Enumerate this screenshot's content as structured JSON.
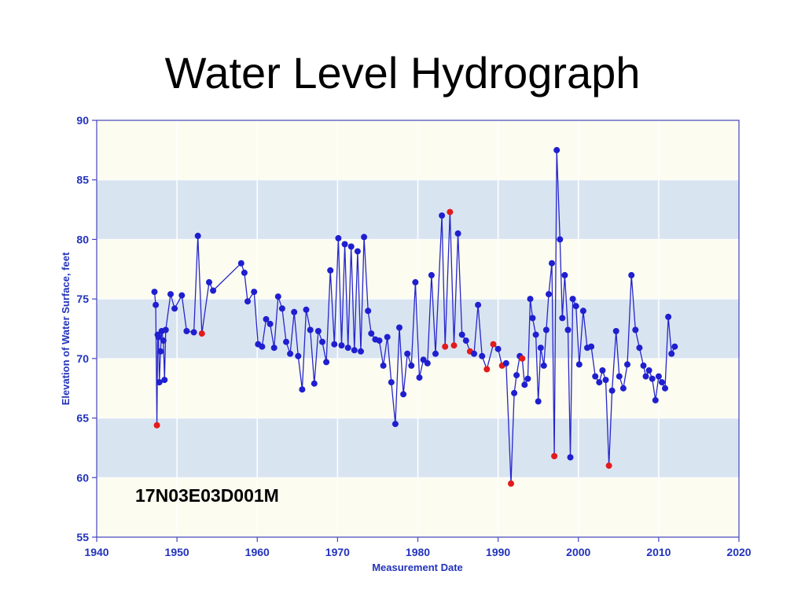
{
  "slide": {
    "title": "Water Level Hydrograph"
  },
  "colors": {
    "axis": "#4444bb",
    "tick_text": "#2233bb",
    "line": "#2626cc",
    "point": "#1f1fd0",
    "flagged_point": "#e31b1b",
    "band_ivory": "#fcfcf0",
    "band_blue": "#d9e4f1",
    "gridline": "#ffffff",
    "title_text": "#000000"
  },
  "chart_data": {
    "type": "line",
    "marker": "circle",
    "title": "Water Level Hydrograph",
    "xlabel": "Measurement Date",
    "ylabel": "Elevation of Water Surface, feet",
    "well_id": "17N03E03D001M",
    "xlim": [
      1940,
      2020
    ],
    "ylim": [
      55,
      90
    ],
    "xticks": [
      1940,
      1950,
      1960,
      1970,
      1980,
      1990,
      2000,
      2010,
      2020
    ],
    "yticks": [
      55,
      60,
      65,
      70,
      75,
      80,
      85,
      90
    ],
    "grid": "white vertical gridlines at decade ticks, alternating horizontal color bands every 5 ft",
    "legend": "none",
    "point_format": "[year, elevation_ft, flagged(0=blue,1=red)]",
    "points": [
      [
        1947.2,
        75.6,
        0
      ],
      [
        1947.35,
        74.5,
        0
      ],
      [
        1947.5,
        64.4,
        1
      ],
      [
        1947.6,
        72.0,
        0
      ],
      [
        1947.7,
        71.8,
        0
      ],
      [
        1947.8,
        68.0,
        0
      ],
      [
        1947.95,
        70.6,
        0
      ],
      [
        1948.1,
        72.3,
        0
      ],
      [
        1948.3,
        71.5,
        0
      ],
      [
        1948.45,
        68.2,
        0
      ],
      [
        1948.6,
        72.4,
        0
      ],
      [
        1949.2,
        75.4,
        0
      ],
      [
        1949.7,
        74.2,
        0
      ],
      [
        1950.6,
        75.3,
        0
      ],
      [
        1951.2,
        72.3,
        0
      ],
      [
        1952.1,
        72.2,
        0
      ],
      [
        1952.6,
        80.3,
        0
      ],
      [
        1953.1,
        72.1,
        1
      ],
      [
        1954.0,
        76.4,
        0
      ],
      [
        1954.5,
        75.7,
        0
      ],
      [
        1958.0,
        78.0,
        0
      ],
      [
        1958.4,
        77.2,
        0
      ],
      [
        1958.8,
        74.8,
        0
      ],
      [
        1959.6,
        75.6,
        0
      ],
      [
        1960.1,
        71.2,
        0
      ],
      [
        1960.6,
        71.0,
        0
      ],
      [
        1961.1,
        73.3,
        0
      ],
      [
        1961.6,
        72.9,
        0
      ],
      [
        1962.1,
        70.9,
        0
      ],
      [
        1962.6,
        75.2,
        0
      ],
      [
        1963.1,
        74.2,
        0
      ],
      [
        1963.6,
        71.4,
        0
      ],
      [
        1964.1,
        70.4,
        0
      ],
      [
        1964.6,
        73.9,
        0
      ],
      [
        1965.1,
        70.2,
        0
      ],
      [
        1965.6,
        67.4,
        0
      ],
      [
        1966.1,
        74.1,
        0
      ],
      [
        1966.6,
        72.4,
        0
      ],
      [
        1967.1,
        67.9,
        0
      ],
      [
        1967.6,
        72.3,
        0
      ],
      [
        1968.1,
        71.4,
        0
      ],
      [
        1968.6,
        69.7,
        0
      ],
      [
        1969.1,
        77.4,
        0
      ],
      [
        1969.6,
        71.2,
        0
      ],
      [
        1970.1,
        80.1,
        0
      ],
      [
        1970.5,
        71.1,
        0
      ],
      [
        1970.9,
        79.6,
        0
      ],
      [
        1971.3,
        70.9,
        0
      ],
      [
        1971.7,
        79.4,
        0
      ],
      [
        1972.1,
        70.7,
        0
      ],
      [
        1972.5,
        79.0,
        0
      ],
      [
        1972.9,
        70.6,
        0
      ],
      [
        1973.3,
        80.2,
        0
      ],
      [
        1973.8,
        74.0,
        0
      ],
      [
        1974.2,
        72.1,
        0
      ],
      [
        1974.7,
        71.6,
        0
      ],
      [
        1975.2,
        71.5,
        0
      ],
      [
        1975.7,
        69.4,
        0
      ],
      [
        1976.2,
        71.8,
        0
      ],
      [
        1976.7,
        68.0,
        0
      ],
      [
        1977.2,
        64.5,
        0
      ],
      [
        1977.7,
        72.6,
        0
      ],
      [
        1978.2,
        67.0,
        0
      ],
      [
        1978.7,
        70.4,
        0
      ],
      [
        1979.2,
        69.4,
        0
      ],
      [
        1979.7,
        76.4,
        0
      ],
      [
        1980.2,
        68.4,
        0
      ],
      [
        1980.7,
        69.9,
        0
      ],
      [
        1981.2,
        69.6,
        0
      ],
      [
        1981.7,
        77.0,
        0
      ],
      [
        1982.2,
        70.4,
        0
      ],
      [
        1983.0,
        82.0,
        0
      ],
      [
        1983.4,
        71.0,
        1
      ],
      [
        1984.0,
        82.3,
        1
      ],
      [
        1984.5,
        71.1,
        1
      ],
      [
        1985.0,
        80.5,
        0
      ],
      [
        1985.5,
        72.0,
        0
      ],
      [
        1986.0,
        71.5,
        0
      ],
      [
        1986.5,
        70.6,
        1
      ],
      [
        1987.0,
        70.4,
        0
      ],
      [
        1987.5,
        74.5,
        0
      ],
      [
        1988.0,
        70.2,
        0
      ],
      [
        1988.6,
        69.1,
        1
      ],
      [
        1989.4,
        71.2,
        1
      ],
      [
        1990.0,
        70.8,
        0
      ],
      [
        1990.5,
        69.4,
        1
      ],
      [
        1991.0,
        69.6,
        0
      ],
      [
        1991.6,
        59.5,
        1
      ],
      [
        1992.0,
        67.1,
        0
      ],
      [
        1992.3,
        68.6,
        0
      ],
      [
        1992.7,
        70.2,
        0
      ],
      [
        1993.0,
        70.0,
        1
      ],
      [
        1993.3,
        67.8,
        0
      ],
      [
        1993.7,
        68.3,
        0
      ],
      [
        1994.0,
        75.0,
        0
      ],
      [
        1994.3,
        73.4,
        0
      ],
      [
        1994.7,
        72.0,
        0
      ],
      [
        1995.0,
        66.4,
        0
      ],
      [
        1995.3,
        70.9,
        0
      ],
      [
        1995.7,
        69.4,
        0
      ],
      [
        1996.0,
        72.4,
        0
      ],
      [
        1996.3,
        75.4,
        0
      ],
      [
        1996.7,
        78.0,
        0
      ],
      [
        1997.0,
        61.8,
        1
      ],
      [
        1997.3,
        87.5,
        0
      ],
      [
        1997.7,
        80.0,
        0
      ],
      [
        1998.0,
        73.4,
        0
      ],
      [
        1998.3,
        77.0,
        0
      ],
      [
        1998.7,
        72.4,
        0
      ],
      [
        1999.0,
        61.7,
        0
      ],
      [
        1999.3,
        75.0,
        0
      ],
      [
        1999.7,
        74.4,
        0
      ],
      [
        2000.1,
        69.5,
        0
      ],
      [
        2000.6,
        74.0,
        0
      ],
      [
        2001.1,
        70.9,
        0
      ],
      [
        2001.6,
        71.0,
        0
      ],
      [
        2002.1,
        68.5,
        0
      ],
      [
        2002.6,
        68.0,
        0
      ],
      [
        2003.0,
        69.0,
        0
      ],
      [
        2003.4,
        68.2,
        0
      ],
      [
        2003.8,
        61.0,
        1
      ],
      [
        2004.2,
        67.3,
        0
      ],
      [
        2004.7,
        72.3,
        0
      ],
      [
        2005.1,
        68.5,
        0
      ],
      [
        2005.6,
        67.5,
        0
      ],
      [
        2006.1,
        69.5,
        0
      ],
      [
        2006.6,
        77.0,
        0
      ],
      [
        2007.1,
        72.4,
        0
      ],
      [
        2007.6,
        70.9,
        0
      ],
      [
        2008.1,
        69.4,
        0
      ],
      [
        2008.4,
        68.5,
        0
      ],
      [
        2008.8,
        69.0,
        0
      ],
      [
        2009.2,
        68.3,
        0
      ],
      [
        2009.6,
        66.5,
        0
      ],
      [
        2010.0,
        68.5,
        0
      ],
      [
        2010.4,
        68.0,
        0
      ],
      [
        2010.8,
        67.5,
        0
      ],
      [
        2011.2,
        73.5,
        0
      ],
      [
        2011.6,
        70.4,
        0
      ],
      [
        2012.0,
        71.0,
        0
      ]
    ]
  }
}
